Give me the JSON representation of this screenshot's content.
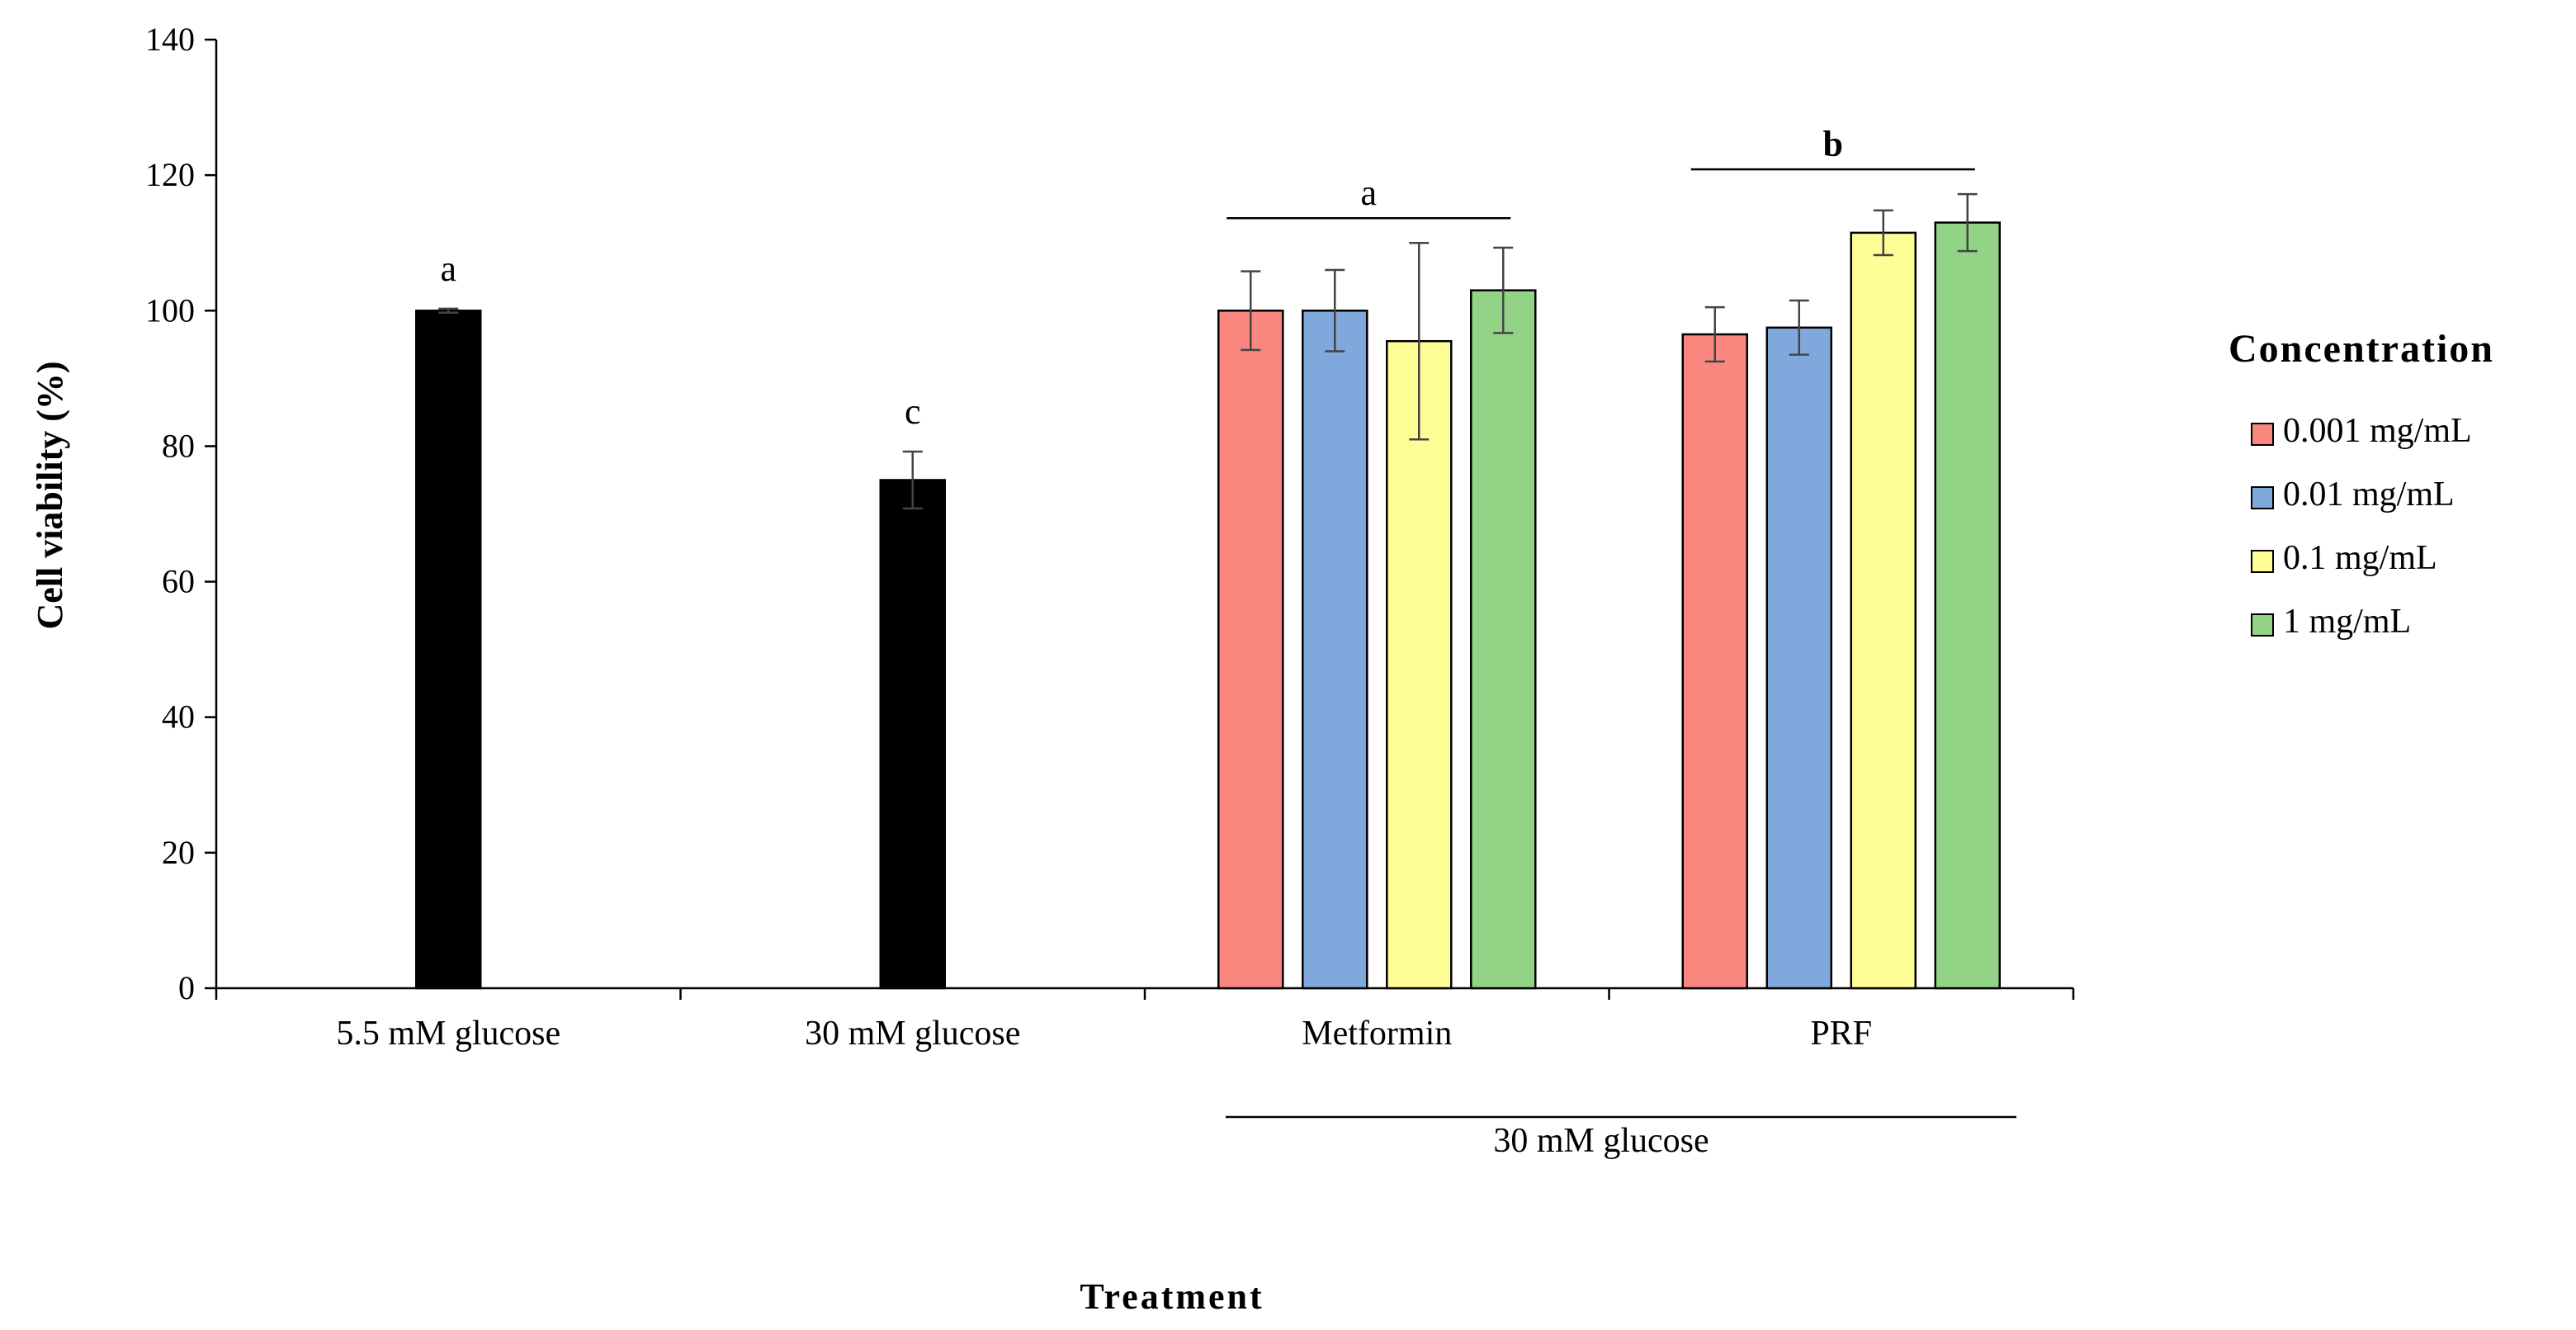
{
  "chart_data": {
    "type": "bar",
    "xlabel": "Treatment",
    "ylabel": "Cell viability (%)",
    "ylim": [
      0,
      140
    ],
    "yticks": [
      0,
      20,
      40,
      60,
      80,
      100,
      120,
      140
    ],
    "grid": false,
    "legend": {
      "title": "Concentration",
      "position": "right",
      "entries": [
        {
          "label": "0.001 mg/mL",
          "color": "#F98780"
        },
        {
          "label": "0.01 mg/mL",
          "color": "#80A8DC"
        },
        {
          "label": "0.1 mg/mL",
          "color": "#FEFD96"
        },
        {
          "label": "1 mg/mL",
          "color": "#93D385"
        }
      ]
    },
    "groups": [
      {
        "name": "5.5 mM glucose",
        "letter": "a",
        "bars": [
          {
            "value": 100,
            "error": 0.3,
            "color": "#000000"
          }
        ]
      },
      {
        "name": "30 mM glucose",
        "letter": "c",
        "bars": [
          {
            "value": 75,
            "error": 4.2,
            "color": "#000000"
          }
        ]
      },
      {
        "name": "Metformin",
        "letter": "a",
        "bars": [
          {
            "value": 100,
            "error": 5.8,
            "color": "#F98780"
          },
          {
            "value": 100,
            "error": 6.0,
            "color": "#80A8DC"
          },
          {
            "value": 95.5,
            "error": 14.5,
            "color": "#FEFD96"
          },
          {
            "value": 103,
            "error": 6.3,
            "color": "#93D385"
          }
        ]
      },
      {
        "name": "PRF",
        "letter": "b",
        "bars": [
          {
            "value": 96.5,
            "error": 4.0,
            "color": "#F98780"
          },
          {
            "value": 97.5,
            "error": 4.0,
            "color": "#80A8DC"
          },
          {
            "value": 111.5,
            "error": 3.3,
            "color": "#FEFD96"
          },
          {
            "value": 113,
            "error": 4.2,
            "color": "#93D385"
          }
        ]
      }
    ],
    "bracket_label": "30 mM glucose"
  }
}
